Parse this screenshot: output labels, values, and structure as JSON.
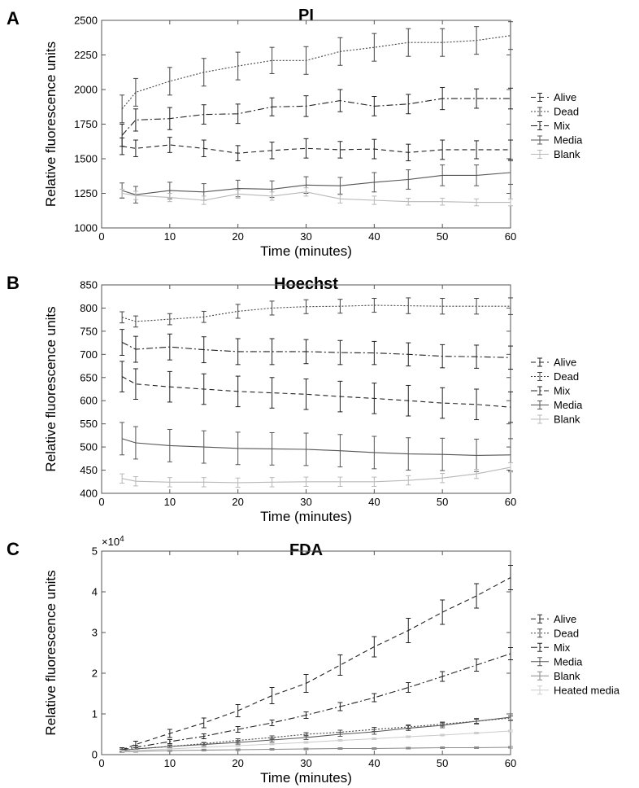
{
  "chart_data": [
    {
      "panel": "A",
      "type": "line",
      "title": "PI",
      "xlabel": "Time (minutes)",
      "ylabel": "Relative fluorescence units",
      "xlim": [
        0,
        60
      ],
      "ylim": [
        1000,
        2500
      ],
      "xticks": [
        0,
        10,
        20,
        30,
        40,
        50,
        60
      ],
      "yticks": [
        1000,
        1250,
        1500,
        1750,
        2000,
        2250,
        2500
      ],
      "x": [
        3,
        5,
        10,
        15,
        20,
        25,
        30,
        35,
        40,
        45,
        50,
        55,
        60
      ],
      "series": [
        {
          "name": "Alive",
          "dash": "6,4",
          "color": "#222222",
          "values": [
            1590,
            1575,
            1600,
            1575,
            1540,
            1560,
            1575,
            1565,
            1570,
            1545,
            1565,
            1565,
            1565
          ],
          "errors": [
            60,
            60,
            55,
            60,
            55,
            60,
            70,
            60,
            70,
            60,
            70,
            65,
            70
          ]
        },
        {
          "name": "Dead",
          "dash": "2,2",
          "color": "#444444",
          "values": [
            1860,
            1980,
            2060,
            2125,
            2170,
            2210,
            2210,
            2275,
            2305,
            2340,
            2340,
            2355,
            2390
          ],
          "errors": [
            100,
            100,
            100,
            100,
            100,
            95,
            100,
            100,
            100,
            100,
            100,
            100,
            100
          ]
        },
        {
          "name": "Mix",
          "dash": "8,3,2,3",
          "color": "#222222",
          "values": [
            1670,
            1780,
            1790,
            1820,
            1825,
            1875,
            1880,
            1920,
            1880,
            1895,
            1935,
            1935,
            1935
          ],
          "errors": [
            80,
            80,
            80,
            70,
            70,
            65,
            75,
            80,
            70,
            70,
            80,
            70,
            75
          ]
        },
        {
          "name": "Media",
          "dash": "",
          "color": "#555555",
          "values": [
            1270,
            1240,
            1270,
            1260,
            1285,
            1280,
            1310,
            1305,
            1330,
            1350,
            1380,
            1380,
            1400
          ],
          "errors": [
            55,
            60,
            60,
            60,
            60,
            60,
            60,
            60,
            70,
            70,
            75,
            75,
            85
          ]
        },
        {
          "name": "Blank",
          "dash": "",
          "color": "#b8b8b8",
          "values": [
            1250,
            1235,
            1220,
            1200,
            1245,
            1230,
            1260,
            1210,
            1200,
            1190,
            1190,
            1185,
            1185
          ],
          "errors": [
            30,
            30,
            30,
            30,
            30,
            30,
            30,
            30,
            30,
            25,
            25,
            25,
            25
          ]
        }
      ]
    },
    {
      "panel": "B",
      "type": "line",
      "title": "Hoechst",
      "xlabel": "Time (minutes)",
      "ylabel": "Relative fluorescence units",
      "xlim": [
        0,
        60
      ],
      "ylim": [
        400,
        850
      ],
      "xticks": [
        0,
        10,
        20,
        30,
        40,
        50,
        60
      ],
      "yticks": [
        400,
        450,
        500,
        550,
        600,
        650,
        700,
        750,
        800,
        850
      ],
      "x": [
        3,
        5,
        10,
        15,
        20,
        25,
        30,
        35,
        40,
        45,
        50,
        55,
        60
      ],
      "series": [
        {
          "name": "Alive",
          "dash": "6,4",
          "color": "#222222",
          "values": [
            652,
            636,
            630,
            625,
            620,
            617,
            614,
            609,
            605,
            600,
            595,
            592,
            586
          ],
          "errors": [
            33,
            33,
            33,
            33,
            33,
            33,
            33,
            33,
            33,
            33,
            33,
            33,
            33
          ]
        },
        {
          "name": "Dead",
          "dash": "2,2",
          "color": "#444444",
          "values": [
            780,
            771,
            776,
            781,
            793,
            800,
            803,
            804,
            806,
            805,
            804,
            804,
            804
          ],
          "errors": [
            12,
            12,
            12,
            12,
            15,
            15,
            15,
            15,
            15,
            17,
            17,
            17,
            18
          ]
        },
        {
          "name": "Mix",
          "dash": "8,3,2,3",
          "color": "#222222",
          "values": [
            726,
            711,
            716,
            710,
            706,
            706,
            706,
            704,
            703,
            700,
            696,
            695,
            693
          ],
          "errors": [
            28,
            28,
            28,
            28,
            28,
            28,
            26,
            26,
            25,
            25,
            25,
            25,
            25
          ]
        },
        {
          "name": "Media",
          "dash": "",
          "color": "#555555",
          "values": [
            518,
            509,
            503,
            500,
            497,
            496,
            495,
            492,
            488,
            485,
            484,
            482,
            483
          ],
          "errors": [
            35,
            35,
            35,
            35,
            35,
            35,
            35,
            35,
            35,
            35,
            35,
            35,
            35
          ]
        },
        {
          "name": "Blank",
          "dash": "",
          "color": "#b8b8b8",
          "values": [
            432,
            426,
            424,
            424,
            423,
            424,
            425,
            425,
            425,
            428,
            433,
            442,
            456
          ],
          "errors": [
            10,
            10,
            10,
            10,
            10,
            10,
            10,
            10,
            10,
            10,
            10,
            10,
            10
          ]
        }
      ]
    },
    {
      "panel": "C",
      "type": "line",
      "title": "FDA",
      "xlabel": "Time (minutes)",
      "ylabel": "Relative fluorescence units",
      "multiplier": "×10",
      "multiplier_exp": "4",
      "xlim": [
        0,
        60
      ],
      "ylim": [
        0,
        5
      ],
      "xticks": [
        0,
        10,
        20,
        30,
        40,
        50,
        60
      ],
      "yticks": [
        0,
        1,
        2,
        3,
        4,
        5
      ],
      "x": [
        3,
        5,
        10,
        15,
        20,
        25,
        30,
        35,
        40,
        45,
        50,
        55,
        60
      ],
      "series": [
        {
          "name": "Alive",
          "dash": "6,4",
          "color": "#222222",
          "values": [
            0.12,
            0.25,
            0.52,
            0.78,
            1.08,
            1.45,
            1.75,
            2.2,
            2.65,
            3.05,
            3.5,
            3.9,
            4.35
          ],
          "errors": [
            0.05,
            0.08,
            0.1,
            0.12,
            0.15,
            0.2,
            0.22,
            0.25,
            0.25,
            0.3,
            0.3,
            0.3,
            0.3
          ]
        },
        {
          "name": "Dead",
          "dash": "2,2",
          "color": "#444444",
          "values": [
            0.1,
            0.14,
            0.2,
            0.27,
            0.35,
            0.42,
            0.5,
            0.55,
            0.62,
            0.68,
            0.75,
            0.82,
            0.9
          ],
          "errors": [
            0.03,
            0.03,
            0.03,
            0.03,
            0.04,
            0.04,
            0.04,
            0.05,
            0.05,
            0.05,
            0.05,
            0.05,
            0.05
          ]
        },
        {
          "name": "Mix",
          "dash": "8,3,2,3",
          "color": "#222222",
          "values": [
            0.12,
            0.18,
            0.32,
            0.45,
            0.62,
            0.78,
            0.97,
            1.18,
            1.4,
            1.65,
            1.92,
            2.2,
            2.48
          ],
          "errors": [
            0.05,
            0.05,
            0.05,
            0.06,
            0.07,
            0.07,
            0.08,
            0.1,
            0.1,
            0.12,
            0.12,
            0.15,
            0.15
          ]
        },
        {
          "name": "Media",
          "dash": "",
          "color": "#555555",
          "values": [
            0.1,
            0.14,
            0.2,
            0.25,
            0.3,
            0.36,
            0.42,
            0.5,
            0.56,
            0.65,
            0.72,
            0.82,
            0.92
          ],
          "errors": [
            0.04,
            0.04,
            0.04,
            0.04,
            0.04,
            0.05,
            0.05,
            0.05,
            0.06,
            0.06,
            0.06,
            0.07,
            0.08
          ]
        },
        {
          "name": "Blank",
          "dash": "",
          "color": "#8a8a8a",
          "values": [
            0.07,
            0.08,
            0.1,
            0.11,
            0.12,
            0.13,
            0.14,
            0.15,
            0.15,
            0.16,
            0.17,
            0.17,
            0.18
          ],
          "errors": [
            0.02,
            0.02,
            0.02,
            0.02,
            0.02,
            0.02,
            0.02,
            0.02,
            0.02,
            0.02,
            0.02,
            0.02,
            0.02
          ]
        },
        {
          "name": "Heated media",
          "dash": "",
          "color": "#cccccc",
          "values": [
            0.08,
            0.1,
            0.14,
            0.18,
            0.22,
            0.26,
            0.3,
            0.35,
            0.39,
            0.44,
            0.48,
            0.53,
            0.58
          ],
          "errors": [
            0.02,
            0.02,
            0.02,
            0.02,
            0.02,
            0.02,
            0.02,
            0.02,
            0.02,
            0.02,
            0.02,
            0.02,
            0.02
          ]
        }
      ]
    }
  ]
}
